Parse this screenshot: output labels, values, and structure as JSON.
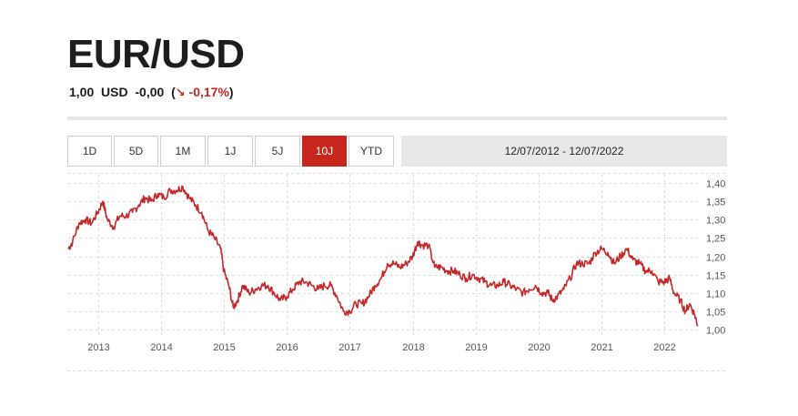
{
  "header": {
    "title": "EUR/USD",
    "price": "1,00",
    "currency": "USD",
    "change": "-0,00",
    "change_pct": "-0,17%",
    "change_color": "#c62828"
  },
  "periods": [
    {
      "label": "1D",
      "active": false
    },
    {
      "label": "5D",
      "active": false
    },
    {
      "label": "1M",
      "active": false
    },
    {
      "label": "1J",
      "active": false
    },
    {
      "label": "5J",
      "active": false
    },
    {
      "label": "10J",
      "active": true
    },
    {
      "label": "YTD",
      "active": false
    }
  ],
  "date_range": "12/07/2012 - 12/07/2022",
  "colors": {
    "line": "#c62828",
    "accent": "#c6261c",
    "grid": "#dddddd"
  },
  "chart_data": {
    "type": "line",
    "title": "",
    "xlabel": "",
    "ylabel": "",
    "grid": true,
    "x_tick_labels": [
      "2013",
      "2014",
      "2015",
      "2016",
      "2017",
      "2018",
      "2019",
      "2020",
      "2021",
      "2022"
    ],
    "y_tick_labels": [
      "1,40",
      "1,35",
      "1,30",
      "1,25",
      "1,20",
      "1,15",
      "1,10",
      "1,05",
      "1,00"
    ],
    "ylim": [
      1.0,
      1.4
    ],
    "xlim": [
      2012.53,
      2022.53
    ],
    "series": [
      {
        "points": [
          [
            2012.53,
            1.22
          ],
          [
            2012.6,
            1.24
          ],
          [
            2012.7,
            1.29
          ],
          [
            2012.8,
            1.3
          ],
          [
            2012.9,
            1.29
          ],
          [
            2013.0,
            1.32
          ],
          [
            2013.08,
            1.35
          ],
          [
            2013.15,
            1.3
          ],
          [
            2013.25,
            1.28
          ],
          [
            2013.35,
            1.31
          ],
          [
            2013.45,
            1.31
          ],
          [
            2013.55,
            1.32
          ],
          [
            2013.65,
            1.34
          ],
          [
            2013.75,
            1.36
          ],
          [
            2013.85,
            1.35
          ],
          [
            2013.95,
            1.37
          ],
          [
            2014.05,
            1.36
          ],
          [
            2014.15,
            1.38
          ],
          [
            2014.25,
            1.38
          ],
          [
            2014.35,
            1.39
          ],
          [
            2014.45,
            1.36
          ],
          [
            2014.55,
            1.34
          ],
          [
            2014.65,
            1.32
          ],
          [
            2014.75,
            1.27
          ],
          [
            2014.85,
            1.25
          ],
          [
            2014.95,
            1.22
          ],
          [
            2015.0,
            1.16
          ],
          [
            2015.08,
            1.12
          ],
          [
            2015.15,
            1.06
          ],
          [
            2015.22,
            1.08
          ],
          [
            2015.3,
            1.12
          ],
          [
            2015.4,
            1.1
          ],
          [
            2015.5,
            1.11
          ],
          [
            2015.6,
            1.12
          ],
          [
            2015.7,
            1.12
          ],
          [
            2015.8,
            1.1
          ],
          [
            2015.9,
            1.08
          ],
          [
            2016.0,
            1.09
          ],
          [
            2016.1,
            1.11
          ],
          [
            2016.2,
            1.13
          ],
          [
            2016.3,
            1.13
          ],
          [
            2016.4,
            1.12
          ],
          [
            2016.5,
            1.11
          ],
          [
            2016.6,
            1.12
          ],
          [
            2016.7,
            1.12
          ],
          [
            2016.8,
            1.09
          ],
          [
            2016.9,
            1.05
          ],
          [
            2017.0,
            1.05
          ],
          [
            2017.1,
            1.07
          ],
          [
            2017.2,
            1.07
          ],
          [
            2017.3,
            1.09
          ],
          [
            2017.4,
            1.12
          ],
          [
            2017.5,
            1.14
          ],
          [
            2017.6,
            1.18
          ],
          [
            2017.7,
            1.18
          ],
          [
            2017.8,
            1.17
          ],
          [
            2017.9,
            1.18
          ],
          [
            2018.0,
            1.2
          ],
          [
            2018.08,
            1.24
          ],
          [
            2018.15,
            1.23
          ],
          [
            2018.25,
            1.23
          ],
          [
            2018.35,
            1.17
          ],
          [
            2018.45,
            1.17
          ],
          [
            2018.55,
            1.16
          ],
          [
            2018.65,
            1.16
          ],
          [
            2018.75,
            1.15
          ],
          [
            2018.85,
            1.14
          ],
          [
            2018.95,
            1.15
          ],
          [
            2019.05,
            1.14
          ],
          [
            2019.15,
            1.13
          ],
          [
            2019.25,
            1.12
          ],
          [
            2019.35,
            1.12
          ],
          [
            2019.45,
            1.13
          ],
          [
            2019.55,
            1.12
          ],
          [
            2019.65,
            1.11
          ],
          [
            2019.75,
            1.1
          ],
          [
            2019.85,
            1.11
          ],
          [
            2019.95,
            1.12
          ],
          [
            2020.05,
            1.1
          ],
          [
            2020.15,
            1.1
          ],
          [
            2020.22,
            1.08
          ],
          [
            2020.3,
            1.09
          ],
          [
            2020.4,
            1.11
          ],
          [
            2020.5,
            1.14
          ],
          [
            2020.6,
            1.18
          ],
          [
            2020.7,
            1.18
          ],
          [
            2020.8,
            1.18
          ],
          [
            2020.9,
            1.21
          ],
          [
            2021.0,
            1.22
          ],
          [
            2021.1,
            1.21
          ],
          [
            2021.2,
            1.18
          ],
          [
            2021.3,
            1.2
          ],
          [
            2021.4,
            1.22
          ],
          [
            2021.5,
            1.19
          ],
          [
            2021.6,
            1.18
          ],
          [
            2021.7,
            1.16
          ],
          [
            2021.8,
            1.16
          ],
          [
            2021.9,
            1.13
          ],
          [
            2022.0,
            1.13
          ],
          [
            2022.08,
            1.14
          ],
          [
            2022.15,
            1.1
          ],
          [
            2022.25,
            1.08
          ],
          [
            2022.33,
            1.05
          ],
          [
            2022.4,
            1.07
          ],
          [
            2022.48,
            1.04
          ],
          [
            2022.53,
            1.01
          ]
        ]
      }
    ]
  }
}
